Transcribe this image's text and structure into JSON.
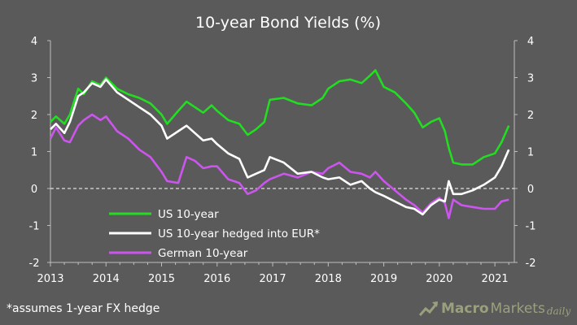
{
  "chart_data": {
    "type": "line",
    "title": "10-year  Bond  Yields  (%)",
    "x_ticks": [
      "2013",
      "2014",
      "2015",
      "2016",
      "2017",
      "2018",
      "2019",
      "2020",
      "2021"
    ],
    "y_ticks": [
      "-2",
      "-1",
      "0",
      "1",
      "2",
      "3",
      "4"
    ],
    "ylim": [
      -2,
      4
    ],
    "xlim": [
      2013.0,
      2021.35
    ],
    "grid": false,
    "zero_line": "dashed",
    "legend_position": "bottom-left",
    "series": [
      {
        "name": "US 10-year",
        "color": "#22dd22",
        "x": [
          2013.0,
          2013.1,
          2013.25,
          2013.35,
          2013.5,
          2013.6,
          2013.75,
          2013.9,
          2014.0,
          2014.2,
          2014.4,
          2014.6,
          2014.8,
          2015.0,
          2015.1,
          2015.3,
          2015.45,
          2015.6,
          2015.75,
          2015.9,
          2016.0,
          2016.2,
          2016.4,
          2016.55,
          2016.7,
          2016.85,
          2016.95,
          2017.2,
          2017.45,
          2017.7,
          2017.9,
          2018.0,
          2018.2,
          2018.4,
          2018.6,
          2018.75,
          2018.85,
          2019.0,
          2019.2,
          2019.4,
          2019.55,
          2019.7,
          2019.85,
          2020.0,
          2020.1,
          2020.17,
          2020.25,
          2020.4,
          2020.6,
          2020.8,
          2021.0,
          2021.12,
          2021.25
        ],
        "values": [
          1.8,
          1.95,
          1.75,
          2.0,
          2.7,
          2.55,
          2.9,
          2.8,
          3.0,
          2.7,
          2.55,
          2.45,
          2.3,
          2.0,
          1.75,
          2.1,
          2.35,
          2.2,
          2.05,
          2.25,
          2.1,
          1.85,
          1.75,
          1.45,
          1.6,
          1.8,
          2.4,
          2.45,
          2.3,
          2.25,
          2.45,
          2.7,
          2.9,
          2.95,
          2.85,
          3.05,
          3.2,
          2.75,
          2.6,
          2.3,
          2.05,
          1.65,
          1.8,
          1.9,
          1.55,
          1.1,
          0.7,
          0.65,
          0.65,
          0.85,
          0.95,
          1.25,
          1.7
        ]
      },
      {
        "name": "US 10-year  hedged  into EUR*",
        "color": "#ffffff",
        "x": [
          2013.0,
          2013.1,
          2013.25,
          2013.35,
          2013.5,
          2013.6,
          2013.75,
          2013.9,
          2014.0,
          2014.2,
          2014.4,
          2014.6,
          2014.8,
          2015.0,
          2015.1,
          2015.3,
          2015.45,
          2015.6,
          2015.75,
          2015.9,
          2016.0,
          2016.2,
          2016.4,
          2016.55,
          2016.7,
          2016.85,
          2016.95,
          2017.2,
          2017.45,
          2017.7,
          2017.9,
          2018.0,
          2018.2,
          2018.4,
          2018.6,
          2018.75,
          2018.85,
          2019.0,
          2019.2,
          2019.4,
          2019.55,
          2019.7,
          2019.85,
          2020.0,
          2020.1,
          2020.17,
          2020.25,
          2020.4,
          2020.6,
          2020.8,
          2021.0,
          2021.12,
          2021.25
        ],
        "values": [
          1.6,
          1.75,
          1.5,
          1.8,
          2.5,
          2.6,
          2.85,
          2.75,
          2.95,
          2.6,
          2.4,
          2.2,
          2.0,
          1.7,
          1.35,
          1.55,
          1.7,
          1.5,
          1.3,
          1.35,
          1.2,
          0.95,
          0.8,
          0.3,
          0.4,
          0.5,
          0.85,
          0.7,
          0.4,
          0.45,
          0.3,
          0.25,
          0.3,
          0.1,
          0.2,
          0.0,
          -0.1,
          -0.2,
          -0.35,
          -0.5,
          -0.55,
          -0.7,
          -0.45,
          -0.3,
          -0.35,
          0.2,
          -0.15,
          -0.15,
          -0.05,
          0.1,
          0.3,
          0.6,
          1.05
        ]
      },
      {
        "name": "German  10-year",
        "color": "#cc55ee",
        "x": [
          2013.0,
          2013.1,
          2013.25,
          2013.35,
          2013.5,
          2013.6,
          2013.75,
          2013.9,
          2014.0,
          2014.2,
          2014.4,
          2014.6,
          2014.8,
          2015.0,
          2015.1,
          2015.3,
          2015.45,
          2015.6,
          2015.75,
          2015.9,
          2016.0,
          2016.2,
          2016.4,
          2016.55,
          2016.7,
          2016.85,
          2016.95,
          2017.2,
          2017.45,
          2017.7,
          2017.9,
          2018.0,
          2018.2,
          2018.4,
          2018.6,
          2018.75,
          2018.85,
          2019.0,
          2019.2,
          2019.4,
          2019.55,
          2019.7,
          2019.85,
          2020.0,
          2020.1,
          2020.17,
          2020.25,
          2020.4,
          2020.6,
          2020.8,
          2021.0,
          2021.12,
          2021.25
        ],
        "values": [
          1.35,
          1.65,
          1.3,
          1.25,
          1.7,
          1.85,
          2.0,
          1.85,
          1.95,
          1.55,
          1.35,
          1.05,
          0.85,
          0.45,
          0.2,
          0.15,
          0.85,
          0.75,
          0.55,
          0.6,
          0.6,
          0.25,
          0.15,
          -0.15,
          -0.05,
          0.15,
          0.25,
          0.4,
          0.3,
          0.45,
          0.4,
          0.55,
          0.7,
          0.45,
          0.4,
          0.3,
          0.45,
          0.2,
          -0.05,
          -0.3,
          -0.45,
          -0.65,
          -0.4,
          -0.25,
          -0.4,
          -0.8,
          -0.3,
          -0.45,
          -0.5,
          -0.55,
          -0.55,
          -0.35,
          -0.3
        ]
      }
    ]
  },
  "footnote": "*assumes 1-year FX hedge",
  "brand": {
    "macro": "Macro",
    "markets": "Markets",
    "daily": "daily",
    "accent_color": "#9aa07e"
  },
  "colors": {
    "background": "#5a5a5a",
    "axis": "#bfbfbf"
  }
}
